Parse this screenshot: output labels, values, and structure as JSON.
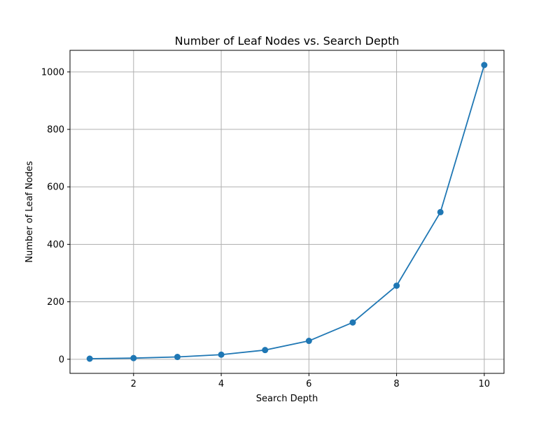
{
  "chart_data": {
    "type": "line",
    "title": "Number of Leaf Nodes vs. Search Depth",
    "xlabel": "Search Depth",
    "ylabel": "Number of Leaf Nodes",
    "x": [
      1,
      2,
      3,
      4,
      5,
      6,
      7,
      8,
      9,
      10
    ],
    "series": [
      {
        "values": [
          2,
          4,
          8,
          16,
          32,
          64,
          128,
          256,
          512,
          1024
        ],
        "color": "#1f77b4",
        "marker": "circle"
      }
    ],
    "xlim": [
      0.55,
      10.45
    ],
    "ylim": [
      -49.1,
      1075.1
    ],
    "xticks": [
      2,
      4,
      6,
      8,
      10
    ],
    "yticks": [
      0,
      200,
      400,
      600,
      800,
      1000
    ],
    "xtick_labels": [
      "2",
      "4",
      "6",
      "8",
      "10"
    ],
    "ytick_labels": [
      "0",
      "200",
      "400",
      "600",
      "800",
      "1000"
    ],
    "grid": true,
    "legend": false
  }
}
